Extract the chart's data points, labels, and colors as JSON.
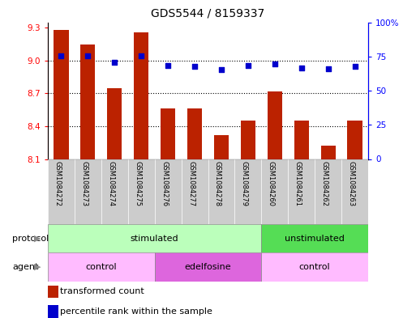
{
  "title": "GDS5544 / 8159337",
  "samples": [
    "GSM1084272",
    "GSM1084273",
    "GSM1084274",
    "GSM1084275",
    "GSM1084276",
    "GSM1084277",
    "GSM1084278",
    "GSM1084279",
    "GSM1084260",
    "GSM1084261",
    "GSM1084262",
    "GSM1084263"
  ],
  "bar_values": [
    9.28,
    9.15,
    8.75,
    9.26,
    8.56,
    8.56,
    8.32,
    8.45,
    8.72,
    8.45,
    8.22,
    8.45
  ],
  "scatter_values": [
    75.5,
    75.2,
    70.5,
    75.3,
    68.5,
    68.0,
    65.5,
    68.2,
    69.5,
    66.5,
    66.0,
    67.5
  ],
  "ylim_left": [
    8.1,
    9.35
  ],
  "ylim_right": [
    0,
    100
  ],
  "yticks_left": [
    8.1,
    8.4,
    8.7,
    9.0,
    9.3
  ],
  "yticks_right": [
    0,
    25,
    50,
    75,
    100
  ],
  "ytick_labels_right": [
    "0",
    "25",
    "50",
    "75",
    "100%"
  ],
  "bar_color": "#bb2200",
  "scatter_color": "#0000cc",
  "bar_bottom": 8.1,
  "protocol_groups": [
    {
      "label": "stimulated",
      "start": 0,
      "end": 8,
      "color": "#bbffbb"
    },
    {
      "label": "unstimulated",
      "start": 8,
      "end": 12,
      "color": "#55dd55"
    }
  ],
  "agent_groups": [
    {
      "label": "control",
      "start": 0,
      "end": 4,
      "color": "#ffbbff"
    },
    {
      "label": "edelfosine",
      "start": 4,
      "end": 8,
      "color": "#dd66dd"
    },
    {
      "label": "control",
      "start": 8,
      "end": 12,
      "color": "#ffbbff"
    }
  ],
  "legend_items": [
    {
      "label": "transformed count",
      "color": "#bb2200"
    },
    {
      "label": "percentile rank within the sample",
      "color": "#0000cc"
    }
  ],
  "protocol_label": "protocol",
  "agent_label": "agent",
  "figsize": [
    5.13,
    3.93
  ],
  "dpi": 100
}
